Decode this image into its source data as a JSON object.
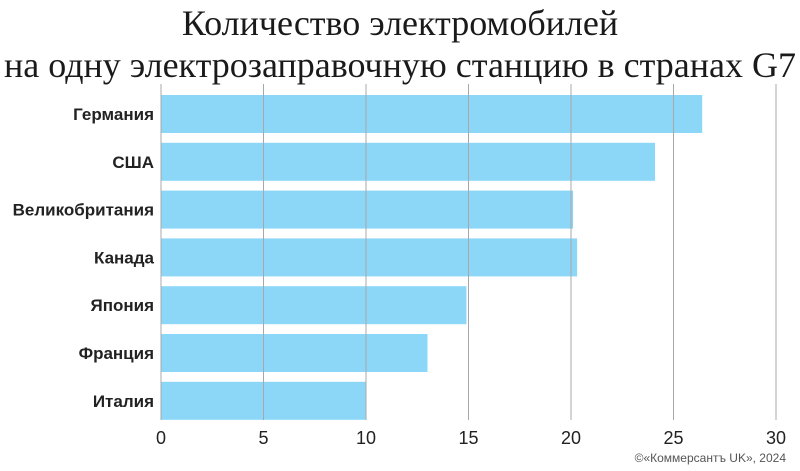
{
  "title_line1": "Количество электромобилей",
  "title_line2": "на одну электрозаправочную станцию в странах G7",
  "credit": "©«Коммерсантъ UK», 2024",
  "colors": {
    "bar": "#8cd7f8",
    "grid": "#a8a8a8",
    "text": "#222222"
  },
  "chart_data": {
    "type": "bar",
    "orientation": "horizontal",
    "categories": [
      "Германия",
      "США",
      "Великобритания",
      "Канада",
      "Япония",
      "Франция",
      "Италия"
    ],
    "values": [
      26.4,
      24.1,
      20.1,
      20.3,
      14.9,
      13.0,
      10.0
    ],
    "xlim": [
      0,
      30
    ],
    "xticks": [
      0,
      5,
      10,
      15,
      20,
      25,
      30
    ],
    "grid": true
  }
}
